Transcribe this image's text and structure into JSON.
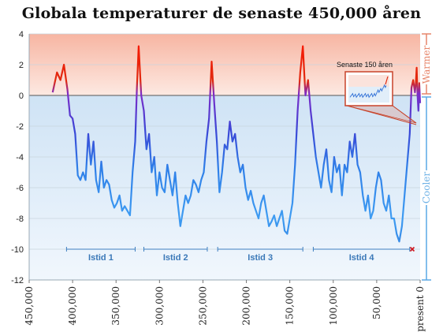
{
  "chart_data": {
    "type": "line",
    "title": "Globala temperaturer de senaste 450,000 åren",
    "xlabel": "",
    "ylabel": "",
    "xlim": [
      450000,
      0
    ],
    "ylim": [
      -12,
      4
    ],
    "x_ticks": [
      450000,
      400000,
      350000,
      300000,
      250000,
      200000,
      150000,
      100000,
      50000,
      0
    ],
    "x_tick_labels": [
      "450,000",
      "400,000",
      "350,000",
      "300,000",
      "250,000",
      "200,000",
      "150,000",
      "100,000",
      "50,000",
      "present 0"
    ],
    "y_ticks": [
      4,
      2,
      0,
      -2,
      -4,
      -6,
      -8,
      -10,
      -12
    ],
    "y_tick_labels": [
      "4",
      "2",
      "0",
      "-2",
      "-4",
      "-6",
      "-8",
      "-10",
      "-12"
    ],
    "grid": true,
    "side_labels": {
      "warm": "Warmer",
      "cool": "Cooler"
    },
    "ice_ages": [
      {
        "label": "Istid 1",
        "x_start": 407000,
        "x_end": 328000
      },
      {
        "label": "Istid 2",
        "x_start": 318000,
        "x_end": 245000
      },
      {
        "label": "Istid 3",
        "x_start": 233000,
        "x_end": 135000
      },
      {
        "label": "Istid 4",
        "x_start": 123000,
        "x_end": 12000
      }
    ],
    "inset_label": "Senaste 150 åren",
    "series": [
      {
        "values": [
          [
            423000,
            0.2
          ],
          [
            418000,
            1.5
          ],
          [
            414000,
            1.0
          ],
          [
            410000,
            2.0
          ],
          [
            406000,
            0.4
          ],
          [
            403000,
            -1.3
          ],
          [
            400000,
            -1.5
          ],
          [
            397000,
            -2.5
          ],
          [
            394000,
            -5.2
          ],
          [
            391000,
            -5.5
          ],
          [
            388000,
            -5.0
          ],
          [
            385000,
            -5.5
          ],
          [
            382000,
            -2.5
          ],
          [
            379000,
            -4.5
          ],
          [
            376000,
            -3.0
          ],
          [
            373000,
            -5.5
          ],
          [
            370000,
            -6.3
          ],
          [
            367000,
            -4.3
          ],
          [
            364000,
            -6.0
          ],
          [
            361000,
            -5.5
          ],
          [
            358000,
            -5.8
          ],
          [
            355000,
            -6.8
          ],
          [
            352000,
            -7.3
          ],
          [
            349000,
            -7.0
          ],
          [
            346000,
            -6.5
          ],
          [
            343000,
            -7.5
          ],
          [
            340000,
            -7.2
          ],
          [
            337000,
            -7.5
          ],
          [
            334000,
            -7.8
          ],
          [
            331000,
            -5.0
          ],
          [
            328000,
            -3.0
          ],
          [
            326000,
            0.5
          ],
          [
            324000,
            3.2
          ],
          [
            321000,
            0.0
          ],
          [
            318000,
            -1.0
          ],
          [
            315000,
            -3.5
          ],
          [
            312000,
            -2.5
          ],
          [
            309000,
            -5.0
          ],
          [
            306000,
            -4.0
          ],
          [
            303000,
            -6.5
          ],
          [
            300000,
            -5.0
          ],
          [
            297000,
            -6.0
          ],
          [
            294000,
            -6.3
          ],
          [
            291000,
            -4.5
          ],
          [
            288000,
            -5.5
          ],
          [
            285000,
            -6.5
          ],
          [
            282000,
            -5.0
          ],
          [
            279000,
            -7.0
          ],
          [
            276000,
            -8.5
          ],
          [
            273000,
            -7.5
          ],
          [
            270000,
            -6.5
          ],
          [
            267000,
            -7.0
          ],
          [
            264000,
            -6.5
          ],
          [
            261000,
            -5.5
          ],
          [
            258000,
            -5.8
          ],
          [
            255000,
            -6.3
          ],
          [
            252000,
            -5.5
          ],
          [
            249000,
            -5.0
          ],
          [
            246000,
            -3.0
          ],
          [
            243000,
            -1.5
          ],
          [
            240000,
            2.2
          ],
          [
            237000,
            -0.5
          ],
          [
            234000,
            -3.0
          ],
          [
            231000,
            -6.3
          ],
          [
            228000,
            -5.0
          ],
          [
            225000,
            -3.2
          ],
          [
            222000,
            -3.5
          ],
          [
            219000,
            -1.7
          ],
          [
            216000,
            -3.0
          ],
          [
            213000,
            -2.5
          ],
          [
            210000,
            -4.0
          ],
          [
            207000,
            -5.0
          ],
          [
            204000,
            -4.5
          ],
          [
            201000,
            -6.0
          ],
          [
            198000,
            -6.8
          ],
          [
            195000,
            -6.2
          ],
          [
            192000,
            -7.0
          ],
          [
            189000,
            -7.5
          ],
          [
            186000,
            -8.0
          ],
          [
            183000,
            -7.0
          ],
          [
            180000,
            -6.5
          ],
          [
            177000,
            -7.5
          ],
          [
            174000,
            -8.5
          ],
          [
            171000,
            -8.2
          ],
          [
            168000,
            -7.8
          ],
          [
            165000,
            -8.5
          ],
          [
            162000,
            -8.0
          ],
          [
            159000,
            -7.5
          ],
          [
            156000,
            -8.8
          ],
          [
            153000,
            -9.0
          ],
          [
            150000,
            -8.0
          ],
          [
            147000,
            -7.0
          ],
          [
            144000,
            -4.5
          ],
          [
            141000,
            -1.0
          ],
          [
            138000,
            1.5
          ],
          [
            135000,
            3.2
          ],
          [
            132000,
            0.0
          ],
          [
            129000,
            1.0
          ],
          [
            126000,
            -1.0
          ],
          [
            123000,
            -2.5
          ],
          [
            120000,
            -4.0
          ],
          [
            117000,
            -5.0
          ],
          [
            114000,
            -6.0
          ],
          [
            111000,
            -4.5
          ],
          [
            108000,
            -3.5
          ],
          [
            105000,
            -5.5
          ],
          [
            102000,
            -6.3
          ],
          [
            99000,
            -4.0
          ],
          [
            96000,
            -5.0
          ],
          [
            93000,
            -4.5
          ],
          [
            90000,
            -6.5
          ],
          [
            87000,
            -4.5
          ],
          [
            84000,
            -5.0
          ],
          [
            81000,
            -3.0
          ],
          [
            78000,
            -4.0
          ],
          [
            75000,
            -2.5
          ],
          [
            72000,
            -4.5
          ],
          [
            69000,
            -5.0
          ],
          [
            66000,
            -6.5
          ],
          [
            63000,
            -7.5
          ],
          [
            60000,
            -6.5
          ],
          [
            57000,
            -8.0
          ],
          [
            54000,
            -7.5
          ],
          [
            51000,
            -6.0
          ],
          [
            48000,
            -5.0
          ],
          [
            45000,
            -5.5
          ],
          [
            42000,
            -7.0
          ],
          [
            39000,
            -7.5
          ],
          [
            36000,
            -6.5
          ],
          [
            33000,
            -8.0
          ],
          [
            30000,
            -8.0
          ],
          [
            27000,
            -9.0
          ],
          [
            24000,
            -9.5
          ],
          [
            21000,
            -8.5
          ],
          [
            18000,
            -6.5
          ],
          [
            15000,
            -4.5
          ],
          [
            12000,
            -2.5
          ],
          [
            10000,
            0.5
          ],
          [
            8000,
            1.0
          ],
          [
            6000,
            0.2
          ],
          [
            5000,
            0.8
          ],
          [
            4000,
            1.8
          ],
          [
            3000,
            0.0
          ],
          [
            2000,
            -1.0
          ],
          [
            1000,
            0.8
          ],
          [
            0,
            -0.5
          ]
        ]
      }
    ]
  }
}
